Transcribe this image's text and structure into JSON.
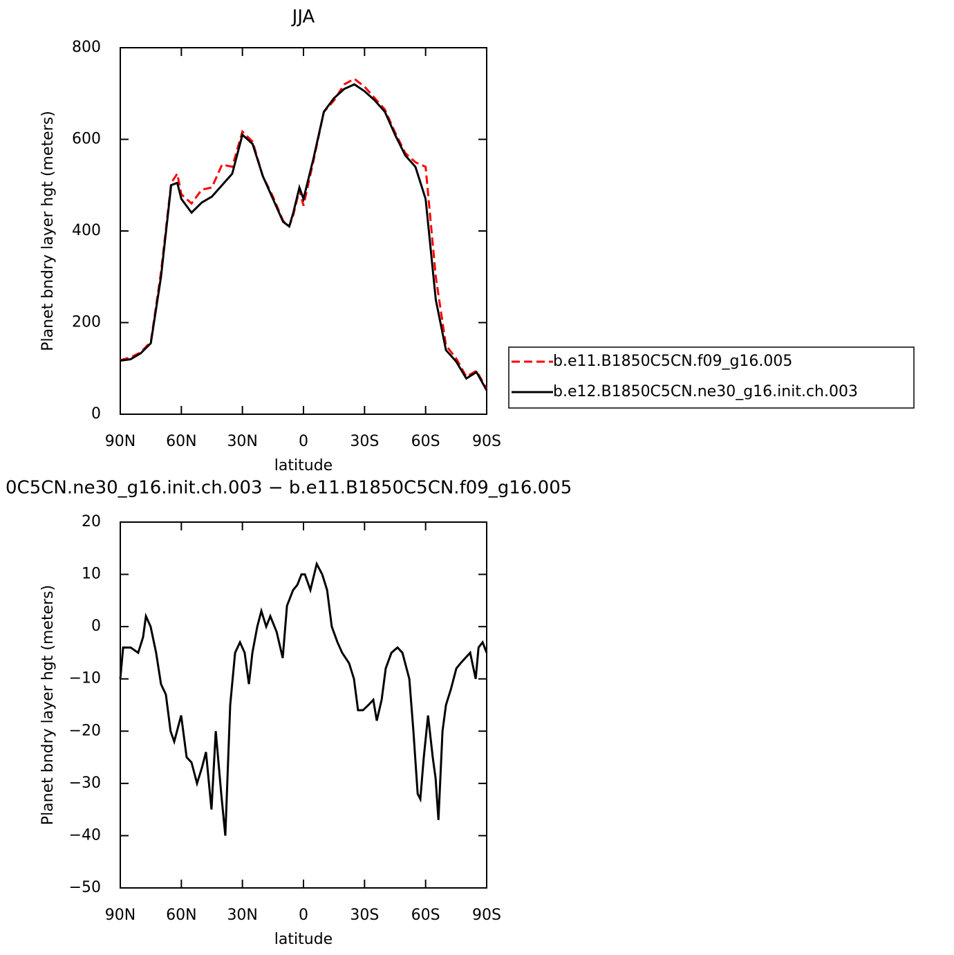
{
  "chart_data": [
    {
      "type": "line",
      "title": "JJA",
      "x_label": "latitude",
      "y_label": "Planet bndry layer hgt (meters)",
      "x": [
        90,
        85,
        80,
        75,
        70,
        65,
        62,
        60,
        55,
        50,
        45,
        40,
        35,
        30,
        25,
        20,
        15,
        10,
        7,
        5,
        2,
        0,
        -5,
        -10,
        -15,
        -20,
        -25,
        -30,
        -35,
        -40,
        -45,
        -50,
        -55,
        -60,
        -65,
        -70,
        -75,
        -80,
        -85,
        -90
      ],
      "xlim": [
        90,
        -90
      ],
      "xticks": [
        {
          "value": 90,
          "label": "90N"
        },
        {
          "value": 60,
          "label": "60N"
        },
        {
          "value": 30,
          "label": "30N"
        },
        0,
        {
          "value": -30,
          "label": "30S"
        },
        {
          "value": -60,
          "label": "60S"
        },
        {
          "value": -90,
          "label": "90S"
        }
      ],
      "ylim": [
        0,
        800
      ],
      "yticks": [
        0,
        200,
        400,
        600,
        800
      ],
      "legend": "right",
      "series": [
        {
          "name": "b.e11.B1850C5CN.f09_g16.005",
          "color": "#ff0000",
          "dash": true,
          "values": [
            118,
            124,
            135,
            158,
            310,
            505,
            525,
            480,
            460,
            490,
            495,
            545,
            540,
            617,
            595,
            520,
            475,
            422,
            410,
            435,
            490,
            455,
            555,
            660,
            685,
            720,
            732,
            715,
            690,
            665,
            615,
            570,
            550,
            540,
            300,
            150,
            122,
            82,
            95,
            55
          ]
        },
        {
          "name": "b.e12.B1850C5CN.ne30_g16.init.ch.003",
          "color": "#000000",
          "dash": false,
          "values": [
            117,
            120,
            133,
            155,
            300,
            500,
            505,
            470,
            440,
            462,
            475,
            500,
            525,
            610,
            590,
            520,
            470,
            420,
            410,
            440,
            495,
            470,
            560,
            660,
            690,
            710,
            720,
            705,
            685,
            660,
            610,
            565,
            540,
            470,
            250,
            140,
            115,
            78,
            92,
            52
          ]
        }
      ]
    },
    {
      "type": "line",
      "title": "0C5CN.ne30_g16.init.ch.003 − b.e11.B1850C5CN.f09_g16.005",
      "x_label": "latitude",
      "y_label": "Planet bndry layer hgt (meters)",
      "x": [
        90,
        88.6,
        84.9,
        81.2,
        78.8,
        77.4,
        75.1,
        72.4,
        70,
        67.6,
        65.3,
        63.5,
        60.1,
        57.4,
        55,
        52.3,
        49.9,
        47.9,
        45.2,
        43.1,
        40.4,
        38.4,
        36,
        33.6,
        31.2,
        28.9,
        26.8,
        25.1,
        22.7,
        20.7,
        18.3,
        16.3,
        13.2,
        10.2,
        8.1,
        5.1,
        3,
        1,
        -0.7,
        -3.4,
        -6.5,
        -9.2,
        -11.6,
        -13.9,
        -16.7,
        -19,
        -22.4,
        -24.8,
        -26.8,
        -29.2,
        -31.9,
        -34.3,
        -36,
        -38.4,
        -40.4,
        -43.2,
        -46.2,
        -48.6,
        -52,
        -54,
        -56.1,
        -57.4,
        -59.1,
        -61.2,
        -63.5,
        -64.9,
        -66.3,
        -68.3,
        -70,
        -72.4,
        -75.1,
        -77.2,
        -79.5,
        -81.9,
        -84.6,
        -86,
        -88,
        -90
      ],
      "xlim": [
        90,
        -90
      ],
      "xticks": [
        {
          "value": 90,
          "label": "90N"
        },
        {
          "value": 60,
          "label": "60N"
        },
        {
          "value": 30,
          "label": "30N"
        },
        0,
        {
          "value": -30,
          "label": "30S"
        },
        {
          "value": -60,
          "label": "60S"
        },
        {
          "value": -90,
          "label": "90S"
        }
      ],
      "ylim": [
        -50,
        20
      ],
      "yticks": [
        {
          "value": -50,
          "label": "−50"
        },
        {
          "value": -40,
          "label": "−40"
        },
        {
          "value": -30,
          "label": "−30"
        },
        {
          "value": -20,
          "label": "−20"
        },
        {
          "value": -10,
          "label": "−10"
        },
        0,
        10,
        20
      ],
      "color": "#000000",
      "values": [
        -10,
        -4,
        -4,
        -5,
        -2,
        2,
        0,
        -5,
        -11,
        -13,
        -20,
        -22,
        -17,
        -25,
        -26,
        -30,
        -27,
        -24,
        -35,
        -20,
        -32,
        -40,
        -15,
        -5,
        -3,
        -5,
        -11,
        -5,
        0,
        3,
        0,
        2,
        -1,
        -6,
        4,
        7,
        8,
        10,
        10,
        7,
        12,
        10,
        7,
        0,
        -3,
        -5,
        -7,
        -10,
        -16,
        -16,
        -15,
        -14,
        -18,
        -14,
        -8,
        -5,
        -4,
        -5,
        -10,
        -20,
        -32,
        -33,
        -25,
        -17,
        -25,
        -29,
        -37,
        -20,
        -15,
        -12,
        -8,
        -7,
        -6,
        -5,
        -10,
        -4,
        -3,
        -5
      ]
    }
  ]
}
